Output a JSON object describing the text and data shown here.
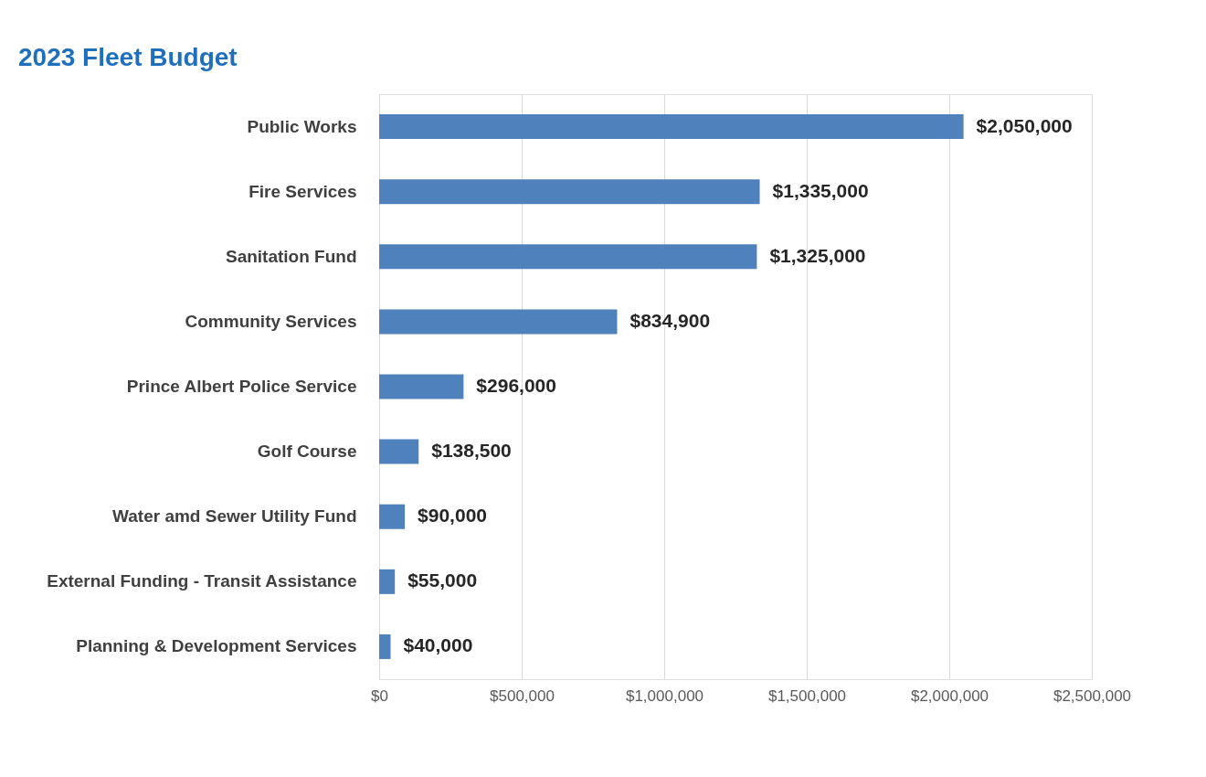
{
  "chart_data": {
    "type": "bar",
    "orientation": "horizontal",
    "title": "2023 Fleet Budget",
    "categories": [
      "Public Works",
      "Fire Services",
      "Sanitation Fund",
      "Community Services",
      "Prince Albert Police Service",
      "Golf Course",
      "Water amd Sewer Utility Fund",
      "External Funding - Transit Assistance",
      "Planning & Development Services"
    ],
    "values": [
      2050000,
      1335000,
      1325000,
      834900,
      296000,
      138500,
      90000,
      55000,
      40000
    ],
    "value_labels": [
      "$2,050,000",
      "$1,335,000",
      "$1,325,000",
      "$834,900",
      "$296,000",
      "$138,500",
      "$90,000",
      "$55,000",
      "$40,000"
    ],
    "color": "#4f81bd",
    "xlim": [
      0,
      2500000
    ],
    "xticks": [
      {
        "value": 0,
        "label": "$0"
      },
      {
        "value": 500000,
        "label": "$500,000"
      },
      {
        "value": 1000000,
        "label": "$1,000,000"
      },
      {
        "value": 1500000,
        "label": "$1,500,000"
      },
      {
        "value": 2000000,
        "label": "$2,000,000"
      },
      {
        "value": 2500000,
        "label": "$2,500,000"
      }
    ],
    "grid": "x"
  }
}
